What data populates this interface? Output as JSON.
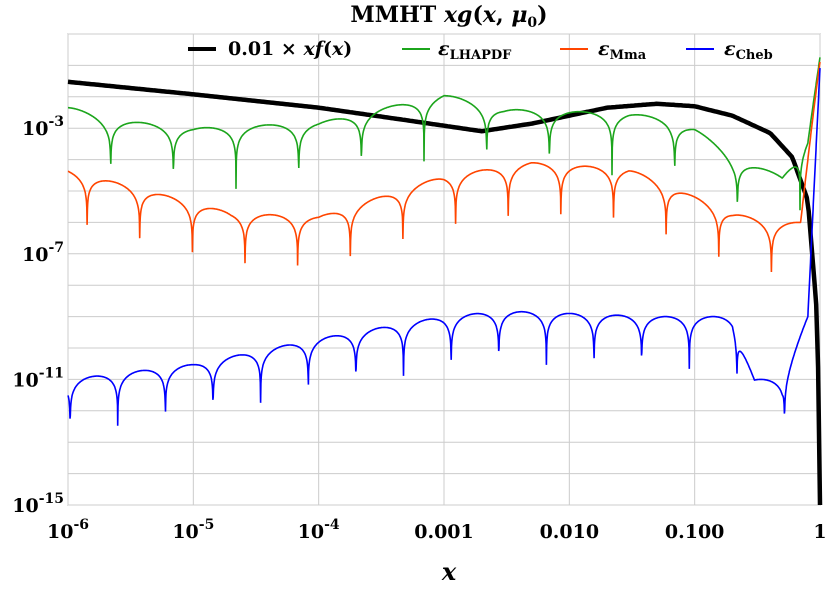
{
  "chart_data": {
    "type": "line",
    "title": "MMHT xg(x, μ0)",
    "xlabel": "x",
    "ylabel": "",
    "xscale": "log",
    "yscale": "log",
    "xlim": [
      1e-06,
      1
    ],
    "ylim": [
      1e-15,
      1
    ],
    "x_ticks": [
      "10^-6",
      "10^-5",
      "10^-4",
      "0.001",
      "0.010",
      "0.100",
      "1"
    ],
    "y_ticks": [
      "10^-3",
      "10^-7",
      "10^-11",
      "10^-15"
    ],
    "grid": true,
    "legend_position": "top",
    "series": [
      {
        "name": "0.01 × xf(x)",
        "color": "#000000",
        "points": [
          [
            1e-06,
            0.03
          ],
          [
            1e-05,
            0.012
          ],
          [
            0.0001,
            0.0045
          ],
          [
            0.0005,
            0.0018
          ],
          [
            0.002,
            0.0008
          ],
          [
            0.005,
            0.0014
          ],
          [
            0.02,
            0.0045
          ],
          [
            0.05,
            0.006
          ],
          [
            0.1,
            0.005
          ],
          [
            0.2,
            0.0025
          ],
          [
            0.4,
            0.0007
          ],
          [
            0.6,
            0.00012
          ],
          [
            0.8,
            5e-06
          ],
          [
            0.95,
            1e-09
          ],
          [
            0.99,
            1e-13
          ],
          [
            1,
            1e-15
          ]
        ]
      },
      {
        "name": "εLHAPDF",
        "color": "#1ca51c",
        "envelope": [
          [
            1e-06,
            0.005
          ],
          [
            2e-06,
            0.002
          ],
          [
            1e-05,
            0.001
          ],
          [
            0.0001,
            0.0015
          ],
          [
            0.001,
            0.012
          ],
          [
            0.003,
            0.004
          ],
          [
            0.03,
            0.003
          ],
          [
            0.06,
            0.002
          ],
          [
            0.1,
            0.001
          ],
          [
            0.2,
            0.00012
          ],
          [
            0.5,
            3e-05
          ],
          [
            0.8,
            0.0006
          ],
          [
            1,
            0.2
          ]
        ],
        "min": 1e-08
      },
      {
        "name": "εMma",
        "color": "#ff4500",
        "envelope": [
          [
            1e-06,
            4.5e-05
          ],
          [
            3e-06,
            1.5e-05
          ],
          [
            2e-05,
            2e-06
          ],
          [
            0.0001,
            1.5e-06
          ],
          [
            0.001,
            3e-05
          ],
          [
            0.005,
            8e-05
          ],
          [
            0.03,
            5e-05
          ],
          [
            0.2,
            2e-06
          ],
          [
            0.4,
            1e-06
          ],
          [
            0.7,
            1e-06
          ],
          [
            1,
            0.3
          ]
        ],
        "min": 1e-10
      },
      {
        "name": "εCheb",
        "color": "#0000ff",
        "envelope": [
          [
            1e-06,
            1e-11
          ],
          [
            1e-05,
            3e-11
          ],
          [
            0.0001,
            2e-10
          ],
          [
            0.001,
            1e-09
          ],
          [
            0.003,
            1.5e-09
          ],
          [
            0.05,
            1e-09
          ],
          [
            0.2,
            1e-09
          ],
          [
            0.3,
            1e-11
          ],
          [
            0.5,
            1e-11
          ],
          [
            0.8,
            1e-09
          ],
          [
            1,
            0.1
          ]
        ],
        "min": 1e-14
      }
    ]
  }
}
